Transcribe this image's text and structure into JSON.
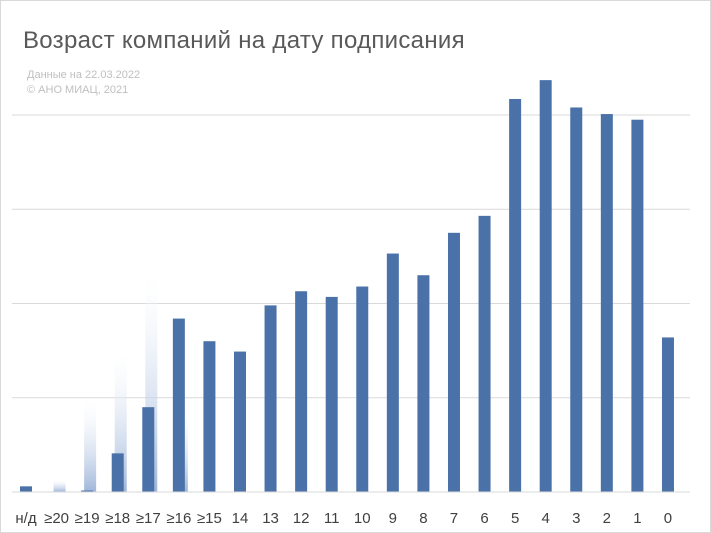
{
  "chart_data": {
    "type": "bar",
    "title": "Возраст компаний на дату подписания",
    "notes": [
      "Данные на 22.03.2022",
      "© АНО МИАЦ, 2021"
    ],
    "xlabel": "",
    "ylabel": "",
    "ylim": [
      0,
      400
    ],
    "gridlines": [
      100,
      200,
      300,
      400
    ],
    "grid": true,
    "legend": "none",
    "categories": [
      "н/д",
      "≥20",
      "≥19",
      "≥18",
      "≥17",
      "≥16",
      "≥15",
      "14",
      "13",
      "12",
      "11",
      "10",
      "9",
      "8",
      "7",
      "6",
      "5",
      "4",
      "3",
      "2",
      "1",
      "0"
    ],
    "series": [
      {
        "color": "#4a72a8",
        "values": [
          6,
          0,
          1,
          41,
          90,
          184,
          160,
          149,
          198,
          213,
          207,
          218,
          253,
          230,
          275,
          293,
          417,
          437,
          408,
          401,
          395,
          164
        ]
      }
    ],
    "ghost_series": {
      "color": "#c5d3e8",
      "values": [
        0,
        13,
        97,
        146,
        229,
        86,
        0,
        0,
        0,
        0,
        0,
        0,
        0,
        0,
        0,
        0,
        0,
        0,
        0,
        0,
        0,
        0
      ]
    }
  }
}
